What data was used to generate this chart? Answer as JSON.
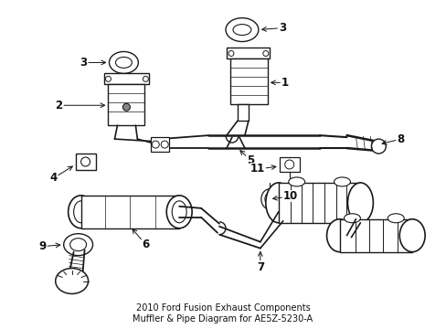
{
  "title_line1": "2010 Ford Fusion Exhaust Components",
  "title_line2": "Muffler & Pipe Diagram for AE5Z-5230-A",
  "bg_color": "#ffffff",
  "lc": "#1a1a1a",
  "figsize": [
    4.89,
    3.6
  ],
  "dpi": 100
}
